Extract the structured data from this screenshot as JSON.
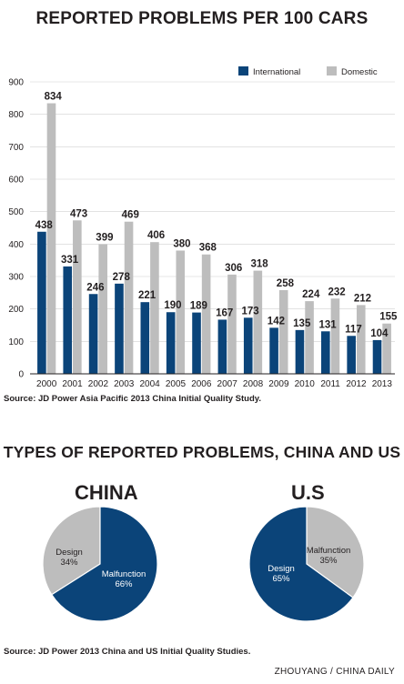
{
  "header": {
    "title": "REPORTED PROBLEMS PER 100 CARS"
  },
  "colors": {
    "international": "#0b4479",
    "domestic": "#bdbdbd",
    "axis": "#231f20",
    "grid": "#d0d0d0"
  },
  "chart_data": [
    {
      "type": "bar",
      "categories": [
        "2000",
        "2001",
        "2002",
        "2003",
        "2004",
        "2005",
        "2006",
        "2007",
        "2008",
        "2009",
        "2010",
        "2011",
        "2012",
        "2013"
      ],
      "series": [
        {
          "name": "International",
          "values": [
            438,
            331,
            246,
            278,
            221,
            190,
            189,
            167,
            173,
            142,
            135,
            131,
            117,
            104
          ]
        },
        {
          "name": "Domestic",
          "values": [
            834,
            473,
            399,
            469,
            406,
            380,
            368,
            306,
            318,
            258,
            224,
            232,
            212,
            155
          ]
        }
      ],
      "ylim": [
        0,
        900
      ],
      "yticks": [
        0,
        100,
        200,
        300,
        400,
        500,
        600,
        700,
        800,
        900
      ],
      "grid": true,
      "legend": "top-right"
    },
    {
      "type": "pie",
      "title": "CHINA",
      "slices": [
        {
          "label": "Design",
          "value": 34,
          "display": "34%"
        },
        {
          "label": "Malfunction",
          "value": 66,
          "display": "66%"
        }
      ]
    },
    {
      "type": "pie",
      "title": "U.S",
      "slices": [
        {
          "label": "Malfunction",
          "value": 35,
          "display": "35%"
        },
        {
          "label": "Design",
          "value": 65,
          "display": "65%"
        }
      ]
    }
  ],
  "source_bar": "Source: JD Power Asia Pacific 2013 China Initial Quality Study.",
  "pies_title": "TYPES OF REPORTED PROBLEMS, CHINA AND US",
  "source_pies": "Source: JD Power 2013 China and US Initial Quality Studies.",
  "credit": "ZHOUYANG / CHINA DAILY"
}
